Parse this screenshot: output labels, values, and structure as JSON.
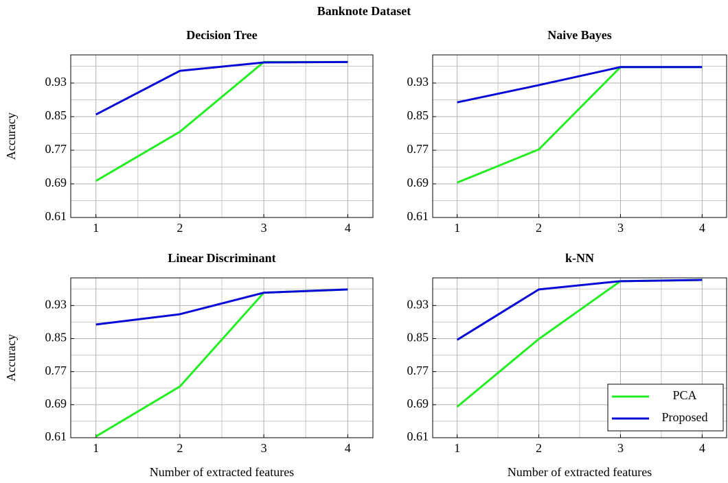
{
  "title": "Banknote Dataset",
  "chart_data": [
    {
      "type": "line",
      "title": "Decision Tree",
      "ylabel": "Accuracy",
      "x": [
        1,
        2,
        3,
        4
      ],
      "xlim": [
        0.7,
        4.3
      ],
      "xticks": [
        1,
        2,
        3,
        4
      ],
      "xminorticks": [
        1.5,
        2.5,
        3.5
      ],
      "ylim": [
        0.61,
        0.997
      ],
      "yticks": [
        0.61,
        0.69,
        0.77,
        0.85,
        0.93
      ],
      "yminorticks": [
        0.65,
        0.73,
        0.81,
        0.89,
        0.97
      ],
      "grid": true,
      "series": [
        {
          "color": "#22ee22",
          "values": [
            0.697,
            0.814,
            0.98,
            0.98
          ]
        },
        {
          "color": "#0a0ad8",
          "values": [
            0.855,
            0.959,
            0.979,
            0.98
          ]
        }
      ]
    },
    {
      "type": "line",
      "title": "Naive Bayes",
      "x": [
        1,
        2,
        3,
        4
      ],
      "xlim": [
        0.7,
        4.3
      ],
      "xticks": [
        1,
        2,
        3,
        4
      ],
      "xminorticks": [
        1.5,
        2.5,
        3.5
      ],
      "ylim": [
        0.61,
        0.997
      ],
      "yticks": [
        0.61,
        0.69,
        0.77,
        0.85,
        0.93
      ],
      "yminorticks": [
        0.65,
        0.73,
        0.81,
        0.89,
        0.97
      ],
      "grid": true,
      "series": [
        {
          "color": "#22ee22",
          "values": [
            0.693,
            0.772,
            0.968,
            0.968
          ]
        },
        {
          "color": "#0a0ad8",
          "values": [
            0.884,
            0.925,
            0.968,
            0.968
          ]
        }
      ]
    },
    {
      "type": "line",
      "title": "Linear Discriminant",
      "ylabel": "Accuracy",
      "xlabel": "Number of extracted features",
      "x": [
        1,
        2,
        3,
        4
      ],
      "xlim": [
        0.7,
        4.3
      ],
      "xticks": [
        1,
        2,
        3,
        4
      ],
      "xminorticks": [
        1.5,
        2.5,
        3.5
      ],
      "ylim": [
        0.61,
        0.997
      ],
      "yticks": [
        0.61,
        0.69,
        0.77,
        0.85,
        0.93
      ],
      "yminorticks": [
        0.65,
        0.73,
        0.81,
        0.89,
        0.97
      ],
      "grid": true,
      "series": [
        {
          "color": "#22ee22",
          "values": [
            0.613,
            0.734,
            0.961,
            0.969
          ]
        },
        {
          "color": "#0a0ad8",
          "values": [
            0.884,
            0.909,
            0.961,
            0.969
          ]
        }
      ]
    },
    {
      "type": "line",
      "title": "k-NN",
      "xlabel": "Number of extracted features",
      "legend": "lower right",
      "x": [
        1,
        2,
        3,
        4
      ],
      "xlim": [
        0.7,
        4.3
      ],
      "xticks": [
        1,
        2,
        3,
        4
      ],
      "xminorticks": [
        1.5,
        2.5,
        3.5
      ],
      "ylim": [
        0.61,
        0.997
      ],
      "yticks": [
        0.61,
        0.69,
        0.77,
        0.85,
        0.93
      ],
      "yminorticks": [
        0.65,
        0.73,
        0.81,
        0.89,
        0.97
      ],
      "grid": true,
      "series": [
        {
          "name": "PCA",
          "color": "#22ee22",
          "values": [
            0.685,
            0.849,
            0.989,
            0.992
          ]
        },
        {
          "name": "Proposed",
          "color": "#0a0ad8",
          "values": [
            0.847,
            0.969,
            0.989,
            0.992
          ]
        }
      ]
    }
  ]
}
